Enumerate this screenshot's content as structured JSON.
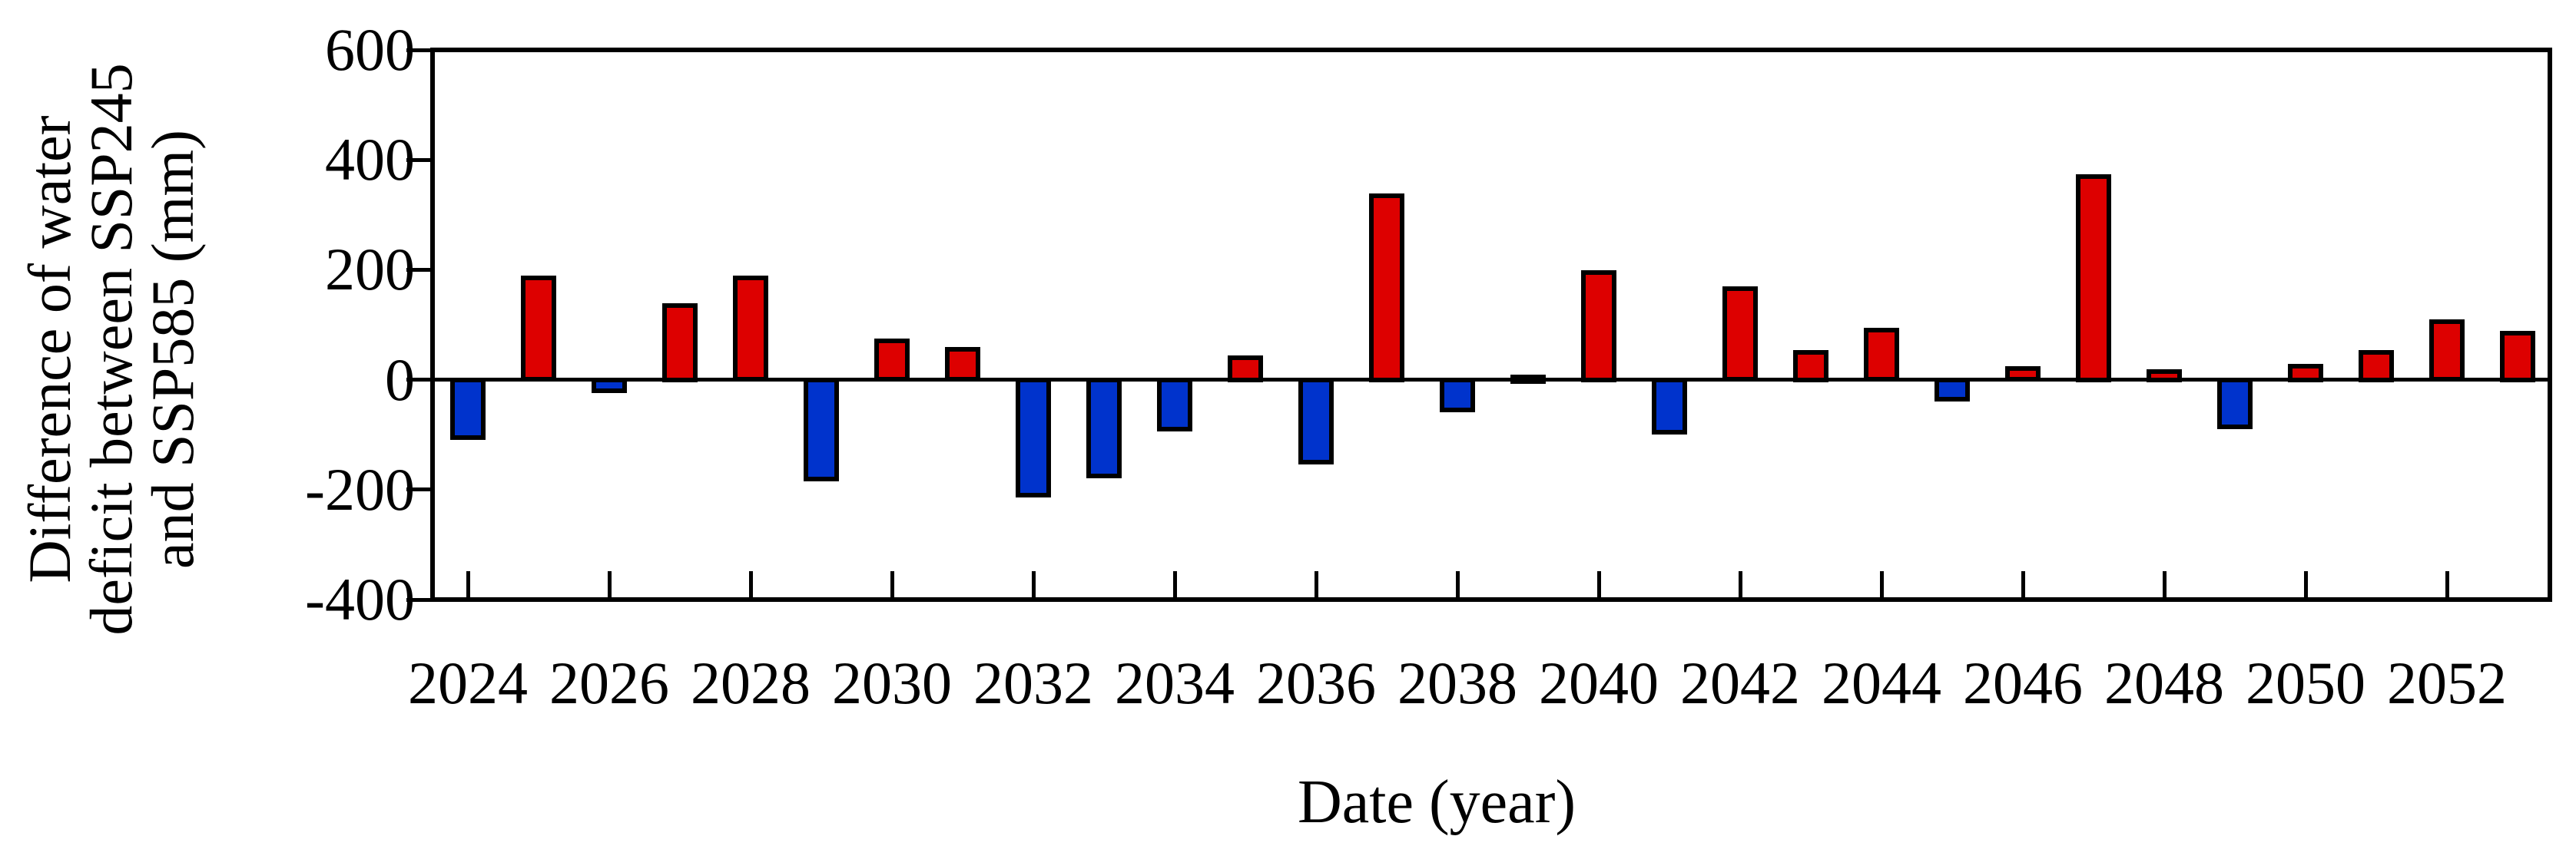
{
  "chart_data": {
    "type": "bar",
    "xlabel": "Date (year)",
    "ylabel_lines": [
      "Difference of water",
      "deficit between SSP245",
      "and SSP585 (mm)"
    ],
    "x": [
      2024,
      2025,
      2026,
      2027,
      2028,
      2029,
      2030,
      2031,
      2032,
      2033,
      2034,
      2035,
      2036,
      2037,
      2038,
      2039,
      2040,
      2041,
      2042,
      2043,
      2044,
      2045,
      2046,
      2047,
      2048,
      2049,
      2050,
      2051,
      2052,
      2053
    ],
    "values": [
      -105,
      185,
      -20,
      135,
      185,
      -180,
      70,
      55,
      -210,
      -175,
      -90,
      40,
      -150,
      335,
      -55,
      5,
      195,
      -95,
      165,
      50,
      90,
      -35,
      20,
      370,
      15,
      -85,
      25,
      50,
      105,
      85
    ],
    "ylim": [
      -400,
      600
    ],
    "yticks": [
      600,
      400,
      200,
      0,
      -200,
      -400
    ],
    "ytick_labels": [
      "600",
      "400",
      "200",
      "0",
      "-200",
      "-400"
    ],
    "xtick_labels": [
      "2024",
      "2026",
      "2028",
      "2030",
      "2032",
      "2034",
      "2036",
      "2038",
      "2040",
      "2042",
      "2044",
      "2046",
      "2048",
      "2050",
      "2052"
    ],
    "positive_color": "#dd0000",
    "negative_color": "#0033cc",
    "bar_edge_color": "#000000",
    "axis_color": "#000000",
    "grid": false
  }
}
